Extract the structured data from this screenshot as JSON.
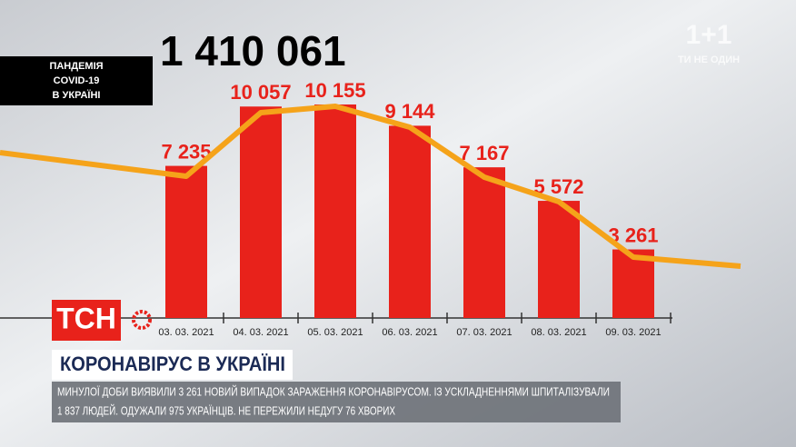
{
  "badge": {
    "lines": [
      "ПАНДЕМІЯ",
      "COVID-19",
      "В УКРАЇНІ"
    ]
  },
  "total": "1 410 061",
  "logo": {
    "main": "1+1",
    "tagline": "ТИ НЕ ОДИН"
  },
  "chart_data": {
    "type": "bar",
    "categories": [
      "03. 03. 2021",
      "04. 03. 2021",
      "05. 03. 2021",
      "06. 03. 2021",
      "07. 03. 2021",
      "08. 03. 2021",
      "09. 03. 2021"
    ],
    "values": [
      7235,
      10057,
      10155,
      9144,
      7167,
      5572,
      3261
    ],
    "value_labels": [
      "7 235",
      "10 057",
      "10 155",
      "9 144",
      "7 167",
      "5 572",
      "3 261"
    ],
    "color": "#e8221b"
  },
  "channel": "ТСН",
  "headline": "КОРОНАВІРУС В УКРАЇНІ",
  "ticker": [
    "МИНУЛОЇ ДОБИ ВИЯВИЛИ 3 261 НОВИЙ ВИПАДОК ЗАРАЖЕННЯ КОРОНАВІРУСОМ. ІЗ УСКЛАДНЕННЯМИ ШПИТАЛІЗУВАЛИ",
    "1 837 ЛЮДЕЙ. ОДУЖАЛИ 975 УКРАЇНЦІВ. НЕ ПЕРЕЖИЛИ НЕДУГУ 76 ХВОРИХ"
  ]
}
